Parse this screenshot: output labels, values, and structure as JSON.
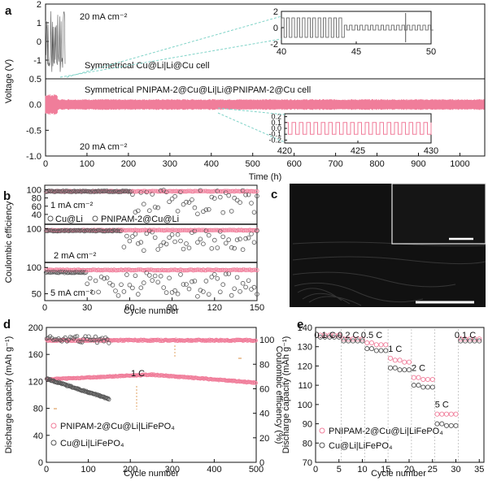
{
  "colors": {
    "pink": "#f07d9a",
    "pink_light": "#f6b0c2",
    "gray": "#555555",
    "gray_light": "#8a8a8a",
    "teal": "#7fd3c8",
    "black": "#111111"
  },
  "panel_labels": [
    "a",
    "b",
    "c",
    "d",
    "e"
  ],
  "chart_data": [
    {
      "panel": "a",
      "type": "line",
      "xlabel": "Time (h)",
      "ylabel": "Voltage (V)",
      "xlim": [
        0,
        1060
      ],
      "xticks": [
        0,
        100,
        200,
        300,
        400,
        500,
        600,
        700,
        800,
        900,
        1000
      ],
      "top": {
        "ylim": [
          -2,
          2
        ],
        "yticks": [
          -1,
          0,
          1,
          2
        ],
        "current_label": "20 mA cm⁻²",
        "cell_label": "Symmetrical  Cu@Li|Li@Cu cell",
        "series": [
          {
            "name": "Cu@Li|Li@Cu",
            "amplitude_v": 1.2,
            "duration_h": 48,
            "color": "gray"
          }
        ],
        "inset": {
          "xlim": [
            40,
            50
          ],
          "ylim": [
            -2,
            2
          ],
          "xticks": [
            40,
            45,
            50
          ],
          "yticks": [
            -2,
            0,
            2
          ]
        }
      },
      "bottom": {
        "ylim": [
          -1.0,
          0.5
        ],
        "yticks": [
          -1.0,
          -0.5,
          0.0,
          0.5
        ],
        "current_label": "20 mA cm⁻²",
        "cell_label": "Symmetrical PNIPAM-2@Cu@Li|Li@PNIPAM-2@Cu cell",
        "series": [
          {
            "name": "PNIPAM-2@Cu@Li|Li@PNIPAM-2@Cu",
            "amplitude_v": 0.1,
            "duration_h": 1060,
            "color": "pink"
          }
        ],
        "inset": {
          "xlim": [
            420,
            430
          ],
          "ylim": [
            -0.25,
            0.25
          ],
          "xticks": [
            420,
            425,
            430
          ],
          "yticks": [
            -0.2,
            -0.1,
            0.0,
            0.1,
            0.2
          ]
        }
      }
    },
    {
      "panel": "b",
      "type": "scatter",
      "xlabel": "Cycle number",
      "ylabel": "Coulombic efficiency",
      "xlim": [
        0,
        150
      ],
      "xticks": [
        0,
        30,
        60,
        90,
        120,
        150
      ],
      "subpanels": [
        {
          "current_label": "1 mA cm⁻²",
          "ylim": [
            20,
            105
          ],
          "yticks": [
            40,
            60,
            80,
            100
          ],
          "pnipam_ce": 97,
          "cu_stable_ce": 97,
          "cu_fail_cycle": 62,
          "cu_after": [
            40,
            100
          ]
        },
        {
          "current_label": "2 mA cm⁻²",
          "ylim": [
            20,
            105
          ],
          "yticks": [
            100
          ],
          "pnipam_ce": 97,
          "cu_stable_ce": 96,
          "cu_fail_cycle": 55,
          "cu_after": [
            45,
            95
          ]
        },
        {
          "current_label": "5 mA cm⁻²",
          "ylim": [
            40,
            105
          ],
          "yticks": [
            50,
            100
          ],
          "pnipam_ce": 96,
          "cu_stable_ce": 92,
          "cu_fail_cycle": 30,
          "cu_after": [
            45,
            90
          ]
        }
      ],
      "legend": [
        "Cu@Li",
        "PNIPAM-2@Cu@Li"
      ]
    },
    {
      "panel": "d",
      "type": "scatter",
      "xlabel": "Cycle number",
      "ylabel": "Discharge capacity (mAh g⁻¹)",
      "y2label": "Coulombic efficiency (%)",
      "xlim": [
        0,
        500
      ],
      "xticks": [
        0,
        100,
        200,
        300,
        400,
        500
      ],
      "ylim": [
        0,
        200
      ],
      "yticks": [
        0,
        40,
        80,
        120,
        160,
        200
      ],
      "y2lim": [
        0,
        110
      ],
      "y2ticks": [
        0,
        20,
        40,
        60,
        80,
        100
      ],
      "rate_label": "1 C",
      "series": [
        {
          "name": "PNIPAM-2@Cu@Li|LiFePO₄",
          "capacity_start": 123,
          "capacity_mid": 130,
          "capacity_end": 118,
          "ce": 99.5,
          "cycles": 500,
          "color": "pink"
        },
        {
          "name": "Cu@Li|LiFePO₄",
          "capacity_start": 124,
          "capacity_end": 94,
          "ce": 100,
          "cycles": 150,
          "color": "gray"
        }
      ]
    },
    {
      "panel": "e",
      "type": "scatter",
      "xlabel": "Cycle number",
      "ylabel": "Discharge capacity (mAh g⁻¹)",
      "xlim": [
        0,
        36
      ],
      "xticks": [
        0,
        5,
        10,
        15,
        20,
        25,
        30,
        35
      ],
      "ylim": [
        70,
        140
      ],
      "yticks": [
        70,
        80,
        90,
        100,
        110,
        120,
        130,
        140
      ],
      "rate_labels": [
        "0.1 C",
        "0.2 C",
        "0.5 C",
        "1 C",
        "2 C",
        "5 C",
        "0.1 C"
      ],
      "segment_bounds": [
        5,
        10,
        15,
        20,
        25,
        30
      ],
      "series": [
        {
          "name": "PNIPAM-2@Cu@Li|LiFePO₄",
          "values": [
            136,
            136,
            136,
            136,
            136,
            134,
            134,
            134,
            134,
            134,
            132,
            132,
            131,
            131,
            131,
            124,
            123,
            123,
            122,
            122,
            114,
            114,
            113,
            113,
            113,
            95,
            95,
            95,
            95,
            95,
            134,
            134,
            134,
            134,
            134
          ],
          "color": "pink"
        },
        {
          "name": "Cu@Li|LiFePO₄",
          "values": [
            135,
            135,
            135,
            135,
            135,
            133,
            133,
            133,
            133,
            133,
            129,
            129,
            128,
            128,
            128,
            119,
            119,
            118,
            118,
            118,
            110,
            110,
            109,
            109,
            109,
            90,
            90,
            89,
            89,
            89,
            133,
            133,
            133,
            133,
            133
          ],
          "color": "gray"
        }
      ]
    }
  ]
}
